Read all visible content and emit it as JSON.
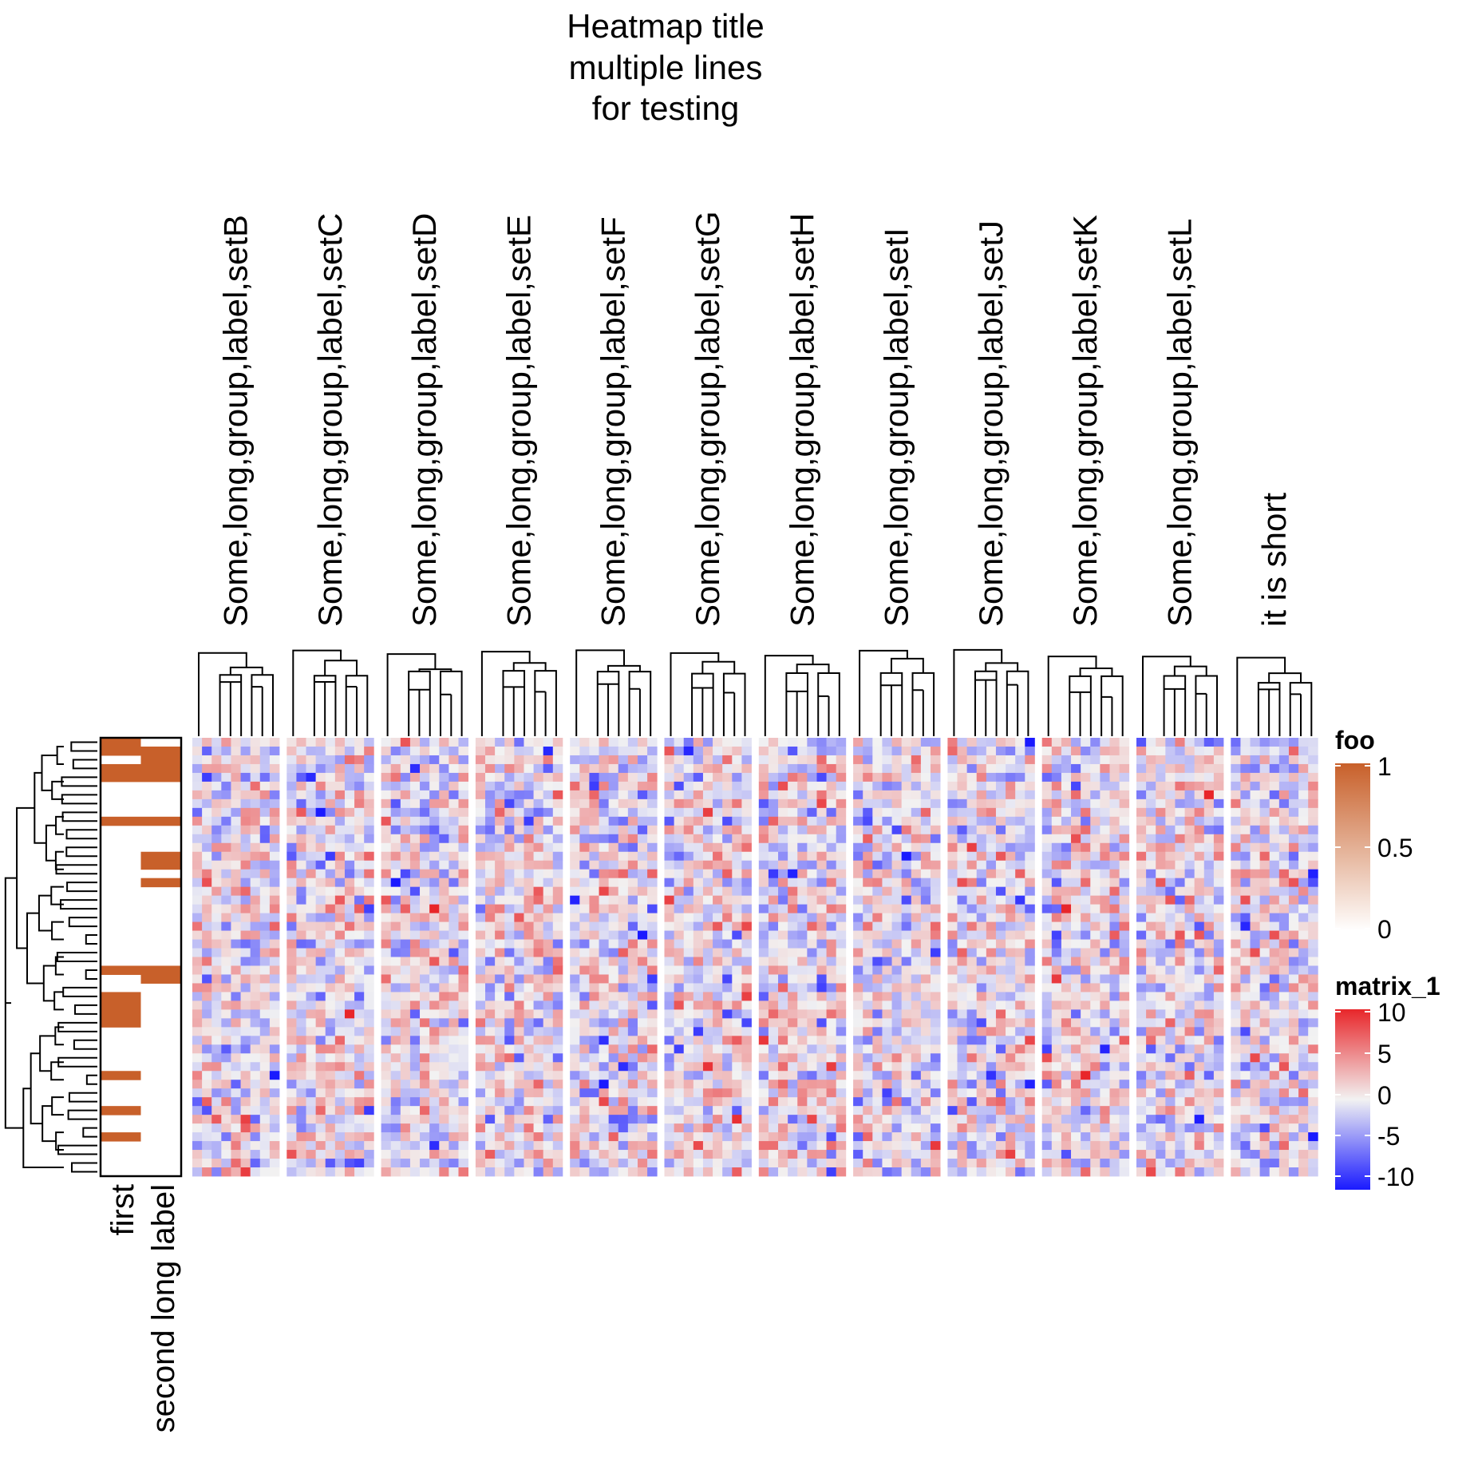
{
  "chart_data": {
    "type": "heatmap",
    "title_lines": [
      "Heatmap title",
      "multiple lines",
      "for testing"
    ],
    "column_groups": [
      "Some,long,group,label,setB",
      "Some,long,group,label,setC",
      "Some,long,group,label,setD",
      "Some,long,group,label,setE",
      "Some,long,group,label,setF",
      "Some,long,group,label,setG",
      "Some,long,group,label,setH",
      "Some,long,group,label,setI",
      "Some,long,group,label,setJ",
      "Some,long,group,label,setK",
      "Some,long,group,label,setL",
      "it is short"
    ],
    "columns_per_group": 9,
    "n_rows": 50,
    "row_annotation": {
      "labels": [
        "first",
        "second long label"
      ],
      "first_rows": [
        0,
        1,
        3,
        4,
        9,
        26,
        29,
        30,
        31,
        32,
        38,
        42,
        45
      ],
      "second_long_label_rows": [
        1,
        2,
        3,
        4,
        9,
        13,
        14,
        16,
        26,
        27
      ]
    },
    "legends": [
      {
        "title": "foo",
        "ticks": [
          "1",
          "0.5",
          "0"
        ],
        "colors": [
          "#c8602a",
          "#ffffff"
        ]
      },
      {
        "title": "matrix_1",
        "ticks": [
          "10",
          "5",
          "0",
          "-5",
          "-10"
        ],
        "colors": [
          "#e8262a",
          "#f2f2f2",
          "#1a1aff"
        ]
      }
    ],
    "value_range": [
      -10,
      10
    ]
  }
}
